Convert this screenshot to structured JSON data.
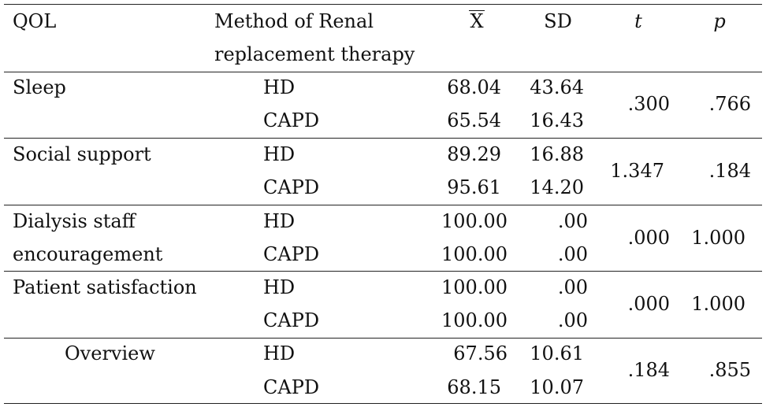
{
  "header": {
    "qol": "QOL",
    "method_line1": "Method of Renal",
    "method_line2": "replacement therapy",
    "mean": "X",
    "sd": "SD",
    "t": "t",
    "p": "p"
  },
  "rows": [
    {
      "label": [
        "Sleep"
      ],
      "methods": [
        {
          "name": "HD",
          "mean": "68.04",
          "sd": "43.64"
        },
        {
          "name": "CAPD",
          "mean": "65.54",
          "sd": "16.43"
        }
      ],
      "t": ".300",
      "p": ".766"
    },
    {
      "label": [
        "Social support"
      ],
      "methods": [
        {
          "name": "HD",
          "mean": "89.29",
          "sd": "16.88"
        },
        {
          "name": "CAPD",
          "mean": "95.61",
          "sd": "14.20"
        }
      ],
      "t": "1.347",
      "p": ".184"
    },
    {
      "label": [
        "Dialysis staff",
        "encouragement"
      ],
      "methods": [
        {
          "name": "HD",
          "mean": "100.00",
          "sd": ".00"
        },
        {
          "name": "CAPD",
          "mean": "100.00",
          "sd": ".00"
        }
      ],
      "t": ".000",
      "p": "1.000"
    },
    {
      "label": [
        "Patient satisfaction"
      ],
      "methods": [
        {
          "name": "HD",
          "mean": "100.00",
          "sd": ".00"
        },
        {
          "name": "CAPD",
          "mean": "100.00",
          "sd": ".00"
        }
      ],
      "t": ".000",
      "p": "1.000"
    },
    {
      "label": [
        "Overview"
      ],
      "methods": [
        {
          "name": "HD",
          "mean": "67.56",
          "sd": "10.61"
        },
        {
          "name": "CAPD",
          "mean": "68.15",
          "sd": "10.07"
        }
      ],
      "t": ".184",
      "p": ".855"
    }
  ]
}
